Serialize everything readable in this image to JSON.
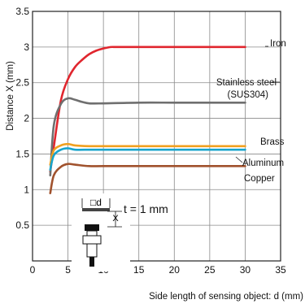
{
  "chart_data": {
    "type": "line",
    "xlabel": "Side length of sensing object: d (mm)",
    "ylabel": "Distance X (mm)",
    "xlim": [
      0,
      35
    ],
    "ylim": [
      0,
      3.5
    ],
    "xticks": [
      "0",
      "5",
      "10",
      "15",
      "20",
      "25",
      "30",
      "35"
    ],
    "yticks": [
      "0.5",
      "1",
      "1.5",
      "2",
      "2.5",
      "3",
      "3.5"
    ],
    "grid": true,
    "annotation": "t = 1 mm",
    "diagram_labels": {
      "d": "□d",
      "x": "X"
    },
    "series": [
      {
        "name": "Iron",
        "color": "#e0262e",
        "x": [
          2.5,
          3,
          4,
          5,
          6,
          7,
          8,
          9,
          10,
          11,
          12,
          15,
          20,
          25,
          30
        ],
        "y": [
          1.25,
          1.6,
          2.25,
          2.55,
          2.72,
          2.82,
          2.9,
          2.95,
          2.98,
          3.0,
          3.0,
          3.0,
          3.0,
          3.0,
          3.0
        ]
      },
      {
        "name": "Stainless steel",
        "name2": "(SUS304)",
        "color": "#6f6f6f",
        "x": [
          2.5,
          3,
          4,
          5,
          6,
          7,
          8,
          10,
          15,
          20,
          25,
          30
        ],
        "y": [
          1.2,
          1.9,
          2.2,
          2.28,
          2.26,
          2.23,
          2.21,
          2.21,
          2.22,
          2.22,
          2.22,
          2.22
        ]
      },
      {
        "name": "Brass",
        "color": "#f0a020",
        "x": [
          2.5,
          3,
          4,
          5,
          6,
          8,
          10,
          15,
          20,
          25,
          30
        ],
        "y": [
          1.35,
          1.55,
          1.62,
          1.64,
          1.62,
          1.61,
          1.61,
          1.61,
          1.61,
          1.61,
          1.61
        ]
      },
      {
        "name": "Aluminum",
        "color": "#18a4cc",
        "x": [
          2.5,
          3,
          4,
          5,
          6,
          8,
          10,
          15,
          20,
          25,
          30
        ],
        "y": [
          1.28,
          1.48,
          1.56,
          1.58,
          1.56,
          1.56,
          1.56,
          1.56,
          1.56,
          1.56,
          1.56
        ]
      },
      {
        "name": "Copper",
        "color": "#a0522d",
        "x": [
          2.5,
          3,
          4,
          5,
          6,
          8,
          10,
          15,
          20,
          25,
          30
        ],
        "y": [
          0.95,
          1.2,
          1.32,
          1.36,
          1.35,
          1.33,
          1.33,
          1.33,
          1.33,
          1.33,
          1.33
        ]
      }
    ]
  }
}
